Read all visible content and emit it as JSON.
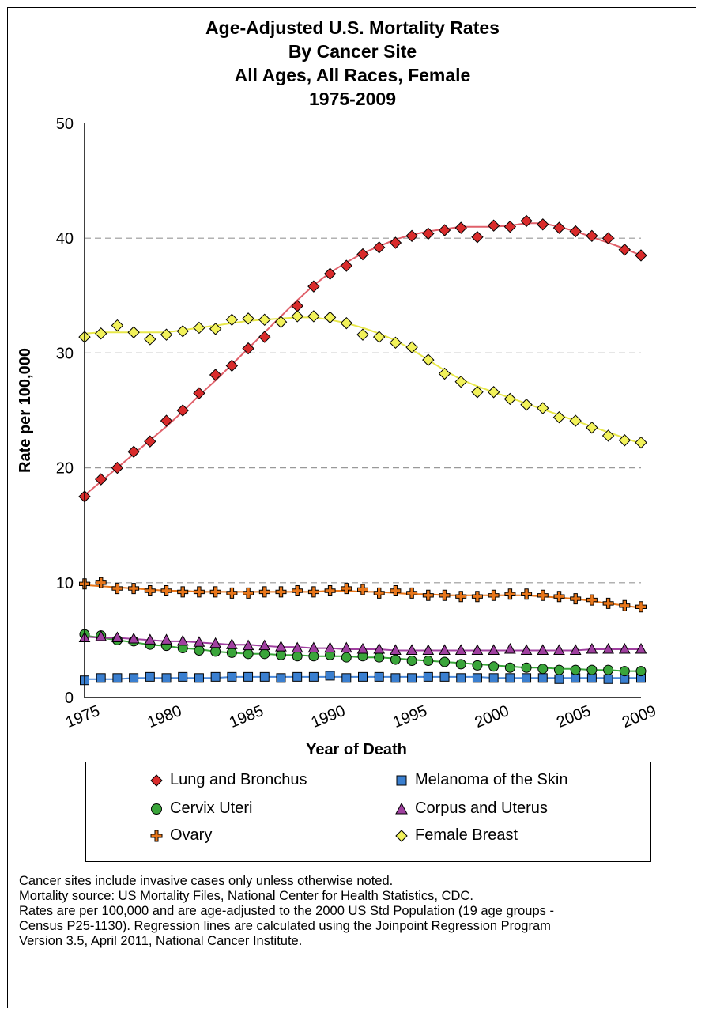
{
  "title_lines": [
    "Age-Adjusted U.S. Mortality Rates",
    "By Cancer Site",
    "All Ages, All Races, Female",
    "1975-2009"
  ],
  "legend": [
    {
      "label": "Lung and Bronchus"
    },
    {
      "label": "Melanoma of the Skin"
    },
    {
      "label": "Cervix Uteri"
    },
    {
      "label": "Corpus and Uterus"
    },
    {
      "label": "Ovary"
    },
    {
      "label": "Female Breast"
    }
  ],
  "notes": [
    "Cancer sites include invasive cases only unless otherwise noted.",
    "Mortality source: US Mortality Files, National Center for Health Statistics, CDC.",
    "Rates are per 100,000 and are age-adjusted to the 2000 US Std Population (19 age groups -",
    "Census P25-1130). Regression lines are calculated using the Joinpoint Regression Program",
    "Version 3.5, April 2011, National Cancer Institute."
  ],
  "chart_data": {
    "type": "scatter",
    "title": "Age-Adjusted U.S. Mortality Rates By Cancer Site All Ages, All Races, Female 1975-2009",
    "xlabel": "Year of Death",
    "ylabel": "Rate per 100,000",
    "xlim": [
      1975,
      2009
    ],
    "ylim": [
      0,
      50
    ],
    "x_ticks": [
      1975,
      1980,
      1985,
      1990,
      1995,
      2000,
      2005,
      2009
    ],
    "y_ticks": [
      0,
      10,
      20,
      30,
      40,
      50
    ],
    "grid": "horizontal dashed",
    "x": [
      1975,
      1976,
      1977,
      1978,
      1979,
      1980,
      1981,
      1982,
      1983,
      1984,
      1985,
      1986,
      1987,
      1988,
      1989,
      1990,
      1991,
      1992,
      1993,
      1994,
      1995,
      1996,
      1997,
      1998,
      1999,
      2000,
      2001,
      2002,
      2003,
      2004,
      2005,
      2006,
      2007,
      2008,
      2009
    ],
    "series": [
      {
        "name": "Lung and Bronchus",
        "marker": "diamond",
        "color": "#d92b2b",
        "line_color": "#e0606a",
        "values": [
          17.5,
          19.0,
          20.0,
          21.4,
          22.3,
          24.1,
          25.0,
          26.5,
          28.1,
          28.9,
          30.4,
          31.4,
          32.7,
          34.1,
          35.8,
          36.9,
          37.6,
          38.6,
          39.2,
          39.6,
          40.2,
          40.4,
          40.7,
          40.9,
          40.1,
          41.1,
          41.0,
          41.5,
          41.2,
          40.9,
          40.6,
          40.2,
          40.0,
          39.0,
          38.5
        ],
        "trend": [
          17.6,
          18.8,
          20.0,
          21.2,
          22.4,
          23.6,
          24.9,
          26.3,
          27.6,
          29.0,
          30.4,
          31.8,
          33.2,
          34.6,
          35.9,
          37.0,
          37.9,
          38.7,
          39.3,
          39.9,
          40.3,
          40.6,
          40.8,
          41.0,
          41.0,
          41.0,
          41.1,
          41.3,
          41.3,
          41.0,
          40.6,
          40.1,
          39.6,
          39.1,
          38.5
        ]
      },
      {
        "name": "Melanoma of the Skin",
        "marker": "square",
        "color": "#3a7fd0",
        "line_color": "#4a88d8",
        "values": [
          1.5,
          1.7,
          1.7,
          1.7,
          1.8,
          1.7,
          1.8,
          1.7,
          1.8,
          1.8,
          1.8,
          1.8,
          1.7,
          1.8,
          1.8,
          1.9,
          1.7,
          1.8,
          1.8,
          1.7,
          1.7,
          1.8,
          1.8,
          1.7,
          1.7,
          1.7,
          1.7,
          1.7,
          1.7,
          1.6,
          1.7,
          1.7,
          1.6,
          1.6,
          1.7
        ],
        "trend": [
          1.6,
          1.6,
          1.6,
          1.7,
          1.7,
          1.7,
          1.7,
          1.7,
          1.7,
          1.8,
          1.8,
          1.8,
          1.8,
          1.8,
          1.8,
          1.8,
          1.8,
          1.8,
          1.8,
          1.8,
          1.8,
          1.8,
          1.8,
          1.8,
          1.8,
          1.7,
          1.7,
          1.7,
          1.7,
          1.7,
          1.7,
          1.7,
          1.7,
          1.7,
          1.7
        ]
      },
      {
        "name": "Cervix Uteri",
        "marker": "circle",
        "color": "#3aa53a",
        "line_color": "#3aa53a",
        "values": [
          5.5,
          5.4,
          5.0,
          4.9,
          4.6,
          4.5,
          4.3,
          4.1,
          4.0,
          3.9,
          3.8,
          3.8,
          3.7,
          3.6,
          3.6,
          3.7,
          3.5,
          3.6,
          3.5,
          3.3,
          3.2,
          3.2,
          3.1,
          2.9,
          2.8,
          2.7,
          2.6,
          2.6,
          2.5,
          2.4,
          2.4,
          2.4,
          2.4,
          2.3,
          2.3
        ],
        "trend": [
          5.4,
          5.2,
          5.0,
          4.8,
          4.6,
          4.5,
          4.3,
          4.2,
          4.0,
          3.9,
          3.8,
          3.8,
          3.7,
          3.7,
          3.6,
          3.6,
          3.6,
          3.5,
          3.5,
          3.4,
          3.3,
          3.2,
          3.1,
          3.0,
          2.9,
          2.8,
          2.7,
          2.6,
          2.6,
          2.5,
          2.5,
          2.4,
          2.4,
          2.3,
          2.3
        ]
      },
      {
        "name": "Corpus and Uterus",
        "marker": "triangle",
        "color": "#a040a0",
        "line_color": "#a040a0",
        "values": [
          5.2,
          5.3,
          5.2,
          5.1,
          5.0,
          5.0,
          4.9,
          4.8,
          4.7,
          4.6,
          4.5,
          4.5,
          4.4,
          4.3,
          4.3,
          4.3,
          4.3,
          4.2,
          4.2,
          4.1,
          4.1,
          4.1,
          4.1,
          4.1,
          4.1,
          4.1,
          4.2,
          4.1,
          4.1,
          4.1,
          4.1,
          4.2,
          4.2,
          4.2,
          4.2
        ],
        "trend": [
          5.3,
          5.2,
          5.2,
          5.1,
          5.0,
          4.9,
          4.9,
          4.8,
          4.7,
          4.6,
          4.6,
          4.5,
          4.4,
          4.4,
          4.3,
          4.3,
          4.2,
          4.2,
          4.2,
          4.1,
          4.1,
          4.1,
          4.1,
          4.1,
          4.1,
          4.1,
          4.1,
          4.1,
          4.1,
          4.1,
          4.1,
          4.2,
          4.2,
          4.2,
          4.2
        ]
      },
      {
        "name": "Ovary",
        "marker": "plus",
        "color": "#e8761a",
        "line_color": "#e8761a",
        "values": [
          9.9,
          10.0,
          9.5,
          9.5,
          9.3,
          9.3,
          9.2,
          9.2,
          9.2,
          9.1,
          9.1,
          9.2,
          9.2,
          9.3,
          9.2,
          9.3,
          9.5,
          9.4,
          9.1,
          9.3,
          9.1,
          8.9,
          8.9,
          8.8,
          8.8,
          8.9,
          9.0,
          9.0,
          8.9,
          8.8,
          8.6,
          8.5,
          8.2,
          8.0,
          7.9
        ],
        "trend": [
          9.8,
          9.7,
          9.6,
          9.5,
          9.4,
          9.3,
          9.3,
          9.2,
          9.2,
          9.2,
          9.2,
          9.2,
          9.2,
          9.2,
          9.2,
          9.3,
          9.3,
          9.2,
          9.2,
          9.1,
          9.0,
          9.0,
          8.9,
          8.9,
          8.9,
          8.9,
          8.9,
          8.9,
          8.8,
          8.7,
          8.6,
          8.4,
          8.2,
          8.0,
          7.8
        ]
      },
      {
        "name": "Female Breast",
        "marker": "diamond",
        "color": "#f2f25a",
        "line_color": "#e8e84a",
        "values": [
          31.4,
          31.7,
          32.4,
          31.8,
          31.2,
          31.6,
          31.9,
          32.2,
          32.1,
          32.9,
          33.0,
          32.9,
          32.7,
          33.2,
          33.2,
          33.1,
          32.6,
          31.6,
          31.4,
          30.9,
          30.5,
          29.4,
          28.2,
          27.5,
          26.6,
          26.6,
          26.0,
          25.5,
          25.2,
          24.4,
          24.1,
          23.5,
          22.8,
          22.4,
          22.2
        ],
        "trend": [
          31.7,
          31.8,
          31.8,
          31.8,
          31.8,
          31.8,
          32.0,
          32.2,
          32.4,
          32.6,
          32.8,
          32.9,
          33.0,
          33.1,
          33.1,
          32.9,
          32.6,
          32.2,
          31.7,
          31.1,
          30.3,
          29.4,
          28.5,
          27.7,
          27.1,
          26.6,
          26.1,
          25.6,
          25.1,
          24.6,
          24.1,
          23.6,
          23.1,
          22.6,
          22.1
        ]
      }
    ]
  }
}
